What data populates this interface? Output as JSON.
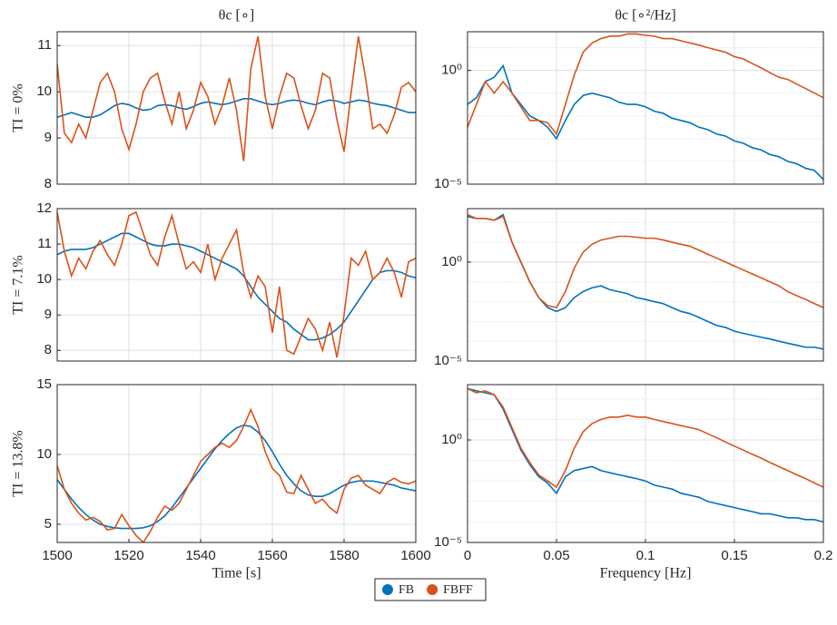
{
  "chart_data": [
    {
      "type": "line",
      "title": "θc [∘]",
      "ylabel": "TI = 0%",
      "x": [
        1500,
        1502,
        1504,
        1506,
        1508,
        1510,
        1512,
        1514,
        1516,
        1518,
        1520,
        1522,
        1524,
        1526,
        1528,
        1530,
        1532,
        1534,
        1536,
        1538,
        1540,
        1542,
        1544,
        1546,
        1548,
        1550,
        1552,
        1554,
        1556,
        1558,
        1560,
        1562,
        1564,
        1566,
        1568,
        1570,
        1572,
        1574,
        1576,
        1578,
        1580,
        1582,
        1584,
        1586,
        1588,
        1590,
        1592,
        1594,
        1596,
        1598,
        1600
      ],
      "series": [
        {
          "color": "#0072bd",
          "values": [
            9.45,
            9.5,
            9.55,
            9.5,
            9.45,
            9.45,
            9.5,
            9.6,
            9.7,
            9.75,
            9.72,
            9.65,
            9.6,
            9.62,
            9.7,
            9.72,
            9.7,
            9.65,
            9.62,
            9.68,
            9.75,
            9.78,
            9.75,
            9.72,
            9.75,
            9.8,
            9.85,
            9.85,
            9.8,
            9.75,
            9.72,
            9.75,
            9.8,
            9.82,
            9.8,
            9.75,
            9.72,
            9.78,
            9.82,
            9.8,
            9.75,
            9.78,
            9.82,
            9.8,
            9.75,
            9.72,
            9.7,
            9.65,
            9.6,
            9.55,
            9.55
          ]
        },
        {
          "color": "#d95319",
          "values": [
            10.6,
            9.1,
            8.9,
            9.3,
            9.0,
            9.6,
            10.2,
            10.4,
            10.0,
            9.2,
            8.75,
            9.3,
            10.0,
            10.3,
            10.4,
            9.8,
            9.3,
            10.0,
            9.2,
            9.6,
            10.2,
            9.9,
            9.3,
            9.7,
            10.3,
            9.6,
            8.5,
            10.5,
            11.2,
            9.9,
            9.2,
            9.9,
            10.4,
            10.3,
            9.7,
            9.2,
            9.6,
            10.4,
            10.3,
            9.4,
            8.7,
            10.0,
            11.2,
            10.3,
            9.2,
            9.3,
            9.1,
            9.5,
            10.1,
            10.2,
            10.0
          ]
        }
      ],
      "xlim": [
        1500,
        1600
      ],
      "ylim": [
        8,
        11.3
      ],
      "yticks": [
        8,
        9,
        10,
        11
      ],
      "grid": true
    },
    {
      "type": "line",
      "title": "θc [∘²/Hz]",
      "log_y": true,
      "x": [
        0,
        0.005,
        0.01,
        0.015,
        0.02,
        0.025,
        0.03,
        0.035,
        0.04,
        0.045,
        0.05,
        0.055,
        0.06,
        0.065,
        0.07,
        0.075,
        0.08,
        0.085,
        0.09,
        0.095,
        0.1,
        0.105,
        0.11,
        0.115,
        0.12,
        0.125,
        0.13,
        0.135,
        0.14,
        0.145,
        0.15,
        0.155,
        0.16,
        0.165,
        0.17,
        0.175,
        0.18,
        0.185,
        0.19,
        0.195,
        0.2
      ],
      "series": [
        {
          "color": "#0072bd",
          "values": [
            0.032,
            0.063,
            0.32,
            0.5,
            1.6,
            0.1,
            0.032,
            0.01,
            0.0063,
            0.0032,
            0.001,
            0.0063,
            0.032,
            0.079,
            0.1,
            0.079,
            0.063,
            0.04,
            0.032,
            0.032,
            0.025,
            0.016,
            0.013,
            0.0079,
            0.0063,
            0.005,
            0.0032,
            0.0025,
            0.0016,
            0.0013,
            0.00079,
            0.00063,
            0.0004,
            0.00032,
            0.0002,
            0.00016,
            0.0001,
            7.9e-05,
            5e-05,
            4e-05,
            1.6e-05
          ]
        },
        {
          "color": "#d95319",
          "values": [
            0.0032,
            0.032,
            0.32,
            0.1,
            0.32,
            0.1,
            0.025,
            0.0063,
            0.0063,
            0.005,
            0.0016,
            0.032,
            0.63,
            6.3,
            16,
            25,
            32,
            32,
            40,
            40,
            35,
            32,
            25,
            25,
            20,
            16,
            13,
            10,
            7.9,
            6.3,
            4,
            3.2,
            2,
            1.3,
            0.79,
            0.5,
            0.4,
            0.25,
            0.16,
            0.1,
            0.063
          ]
        }
      ],
      "xlim": [
        0,
        0.2
      ],
      "ylim": [
        1e-05,
        50
      ],
      "yticks": [
        {
          "value": 1e-05,
          "label": "10⁻⁵"
        },
        {
          "value": 1,
          "label": "10⁰"
        }
      ],
      "grid": true
    },
    {
      "type": "line",
      "ylabel": "TI = 7.1%",
      "x": [
        1500,
        1502,
        1504,
        1506,
        1508,
        1510,
        1512,
        1514,
        1516,
        1518,
        1520,
        1522,
        1524,
        1526,
        1528,
        1530,
        1532,
        1534,
        1536,
        1538,
        1540,
        1542,
        1544,
        1546,
        1548,
        1550,
        1552,
        1554,
        1556,
        1558,
        1560,
        1562,
        1564,
        1566,
        1568,
        1570,
        1572,
        1574,
        1576,
        1578,
        1580,
        1582,
        1584,
        1586,
        1588,
        1590,
        1592,
        1594,
        1596,
        1598,
        1600
      ],
      "series": [
        {
          "color": "#0072bd",
          "values": [
            10.7,
            10.8,
            10.85,
            10.85,
            10.85,
            10.9,
            11.0,
            11.1,
            11.2,
            11.3,
            11.3,
            11.2,
            11.1,
            11.0,
            10.95,
            10.95,
            11.0,
            11.0,
            10.95,
            10.9,
            10.8,
            10.7,
            10.6,
            10.5,
            10.4,
            10.3,
            10.1,
            9.8,
            9.5,
            9.3,
            9.1,
            8.9,
            8.8,
            8.6,
            8.45,
            8.3,
            8.3,
            8.35,
            8.45,
            8.6,
            8.8,
            9.1,
            9.4,
            9.7,
            10.0,
            10.2,
            10.25,
            10.25,
            10.2,
            10.1,
            10.05
          ]
        },
        {
          "color": "#d95319",
          "values": [
            11.9,
            10.8,
            10.1,
            10.6,
            10.3,
            10.8,
            11.1,
            10.7,
            10.4,
            11.0,
            11.8,
            11.9,
            11.3,
            10.7,
            10.4,
            11.2,
            11.8,
            11.0,
            10.3,
            10.5,
            10.2,
            11.0,
            10.0,
            10.6,
            11.0,
            11.4,
            10.2,
            9.5,
            10.1,
            9.8,
            8.5,
            9.8,
            8.0,
            7.9,
            8.4,
            8.9,
            8.6,
            8.0,
            8.8,
            7.8,
            9.0,
            10.6,
            10.4,
            10.8,
            10.0,
            10.2,
            10.6,
            10.2,
            9.5,
            10.5,
            10.6
          ]
        }
      ],
      "xlim": [
        1500,
        1600
      ],
      "ylim": [
        7.7,
        12
      ],
      "yticks": [
        8,
        9,
        10,
        11,
        12
      ],
      "grid": true
    },
    {
      "type": "line",
      "log_y": true,
      "x": [
        0,
        0.005,
        0.01,
        0.015,
        0.02,
        0.025,
        0.03,
        0.035,
        0.04,
        0.045,
        0.05,
        0.055,
        0.06,
        0.065,
        0.07,
        0.075,
        0.08,
        0.085,
        0.09,
        0.095,
        0.1,
        0.105,
        0.11,
        0.115,
        0.12,
        0.125,
        0.13,
        0.135,
        0.14,
        0.145,
        0.15,
        0.155,
        0.16,
        0.165,
        0.17,
        0.175,
        0.18,
        0.185,
        0.19,
        0.195,
        0.2
      ],
      "series": [
        {
          "color": "#0072bd",
          "values": [
            200,
            160,
            160,
            130,
            250,
            10,
            1,
            0.1,
            0.016,
            0.005,
            0.0032,
            0.005,
            0.016,
            0.032,
            0.05,
            0.063,
            0.04,
            0.032,
            0.025,
            0.016,
            0.013,
            0.01,
            0.0079,
            0.005,
            0.0032,
            0.0025,
            0.0016,
            0.001,
            0.00063,
            0.0005,
            0.00032,
            0.00025,
            0.0002,
            0.00016,
            0.00013,
            0.0001,
            7.9e-05,
            6.3e-05,
            5e-05,
            5e-05,
            4e-05
          ]
        },
        {
          "color": "#d95319",
          "values": [
            250,
            160,
            160,
            130,
            200,
            10,
            1,
            0.1,
            0.016,
            0.0063,
            0.005,
            0.032,
            0.5,
            3.2,
            7.9,
            13,
            16,
            20,
            20,
            18,
            16,
            16,
            13,
            10,
            7.9,
            6.3,
            4,
            2.5,
            1.6,
            1,
            0.63,
            0.4,
            0.25,
            0.16,
            0.1,
            0.063,
            0.032,
            0.02,
            0.013,
            0.0079,
            0.005
          ]
        }
      ],
      "xlim": [
        0,
        0.2
      ],
      "ylim": [
        1e-05,
        500
      ],
      "yticks": [
        {
          "value": 1e-05,
          "label": "10⁻⁵"
        },
        {
          "value": 1,
          "label": "10⁰"
        }
      ],
      "grid": true
    },
    {
      "type": "line",
      "ylabel": "TI = 13.8%",
      "xlabel": "Time [s]",
      "legend": "bottom",
      "x": [
        1500,
        1502,
        1504,
        1506,
        1508,
        1510,
        1512,
        1514,
        1516,
        1518,
        1520,
        1522,
        1524,
        1526,
        1528,
        1530,
        1532,
        1534,
        1536,
        1538,
        1540,
        1542,
        1544,
        1546,
        1548,
        1550,
        1552,
        1554,
        1556,
        1558,
        1560,
        1562,
        1564,
        1566,
        1568,
        1570,
        1572,
        1574,
        1576,
        1578,
        1580,
        1582,
        1584,
        1586,
        1588,
        1590,
        1592,
        1594,
        1596,
        1598,
        1600
      ],
      "series": [
        {
          "name": "FB",
          "color": "#0072bd",
          "values": [
            8.2,
            7.5,
            6.8,
            6.2,
            5.7,
            5.3,
            5.0,
            4.85,
            4.75,
            4.7,
            4.7,
            4.7,
            4.75,
            4.9,
            5.2,
            5.6,
            6.2,
            6.9,
            7.6,
            8.3,
            9.0,
            9.7,
            10.4,
            11.0,
            11.5,
            11.9,
            12.1,
            12.0,
            11.6,
            11.0,
            10.2,
            9.3,
            8.5,
            7.9,
            7.4,
            7.1,
            7.0,
            7.0,
            7.2,
            7.5,
            7.8,
            8.0,
            8.1,
            8.1,
            8.1,
            8.0,
            7.9,
            7.8,
            7.6,
            7.5,
            7.4
          ]
        },
        {
          "name": "FBFF",
          "color": "#d95319",
          "values": [
            9.2,
            7.5,
            6.5,
            5.8,
            5.3,
            5.5,
            5.2,
            4.6,
            4.7,
            5.7,
            4.9,
            4.2,
            3.7,
            4.5,
            5.5,
            6.3,
            6.0,
            6.5,
            7.5,
            8.5,
            9.5,
            10.0,
            10.5,
            10.8,
            10.5,
            11.0,
            12.0,
            13.2,
            12.0,
            10.2,
            9.0,
            8.5,
            7.3,
            7.2,
            8.5,
            7.5,
            6.5,
            6.8,
            6.2,
            5.8,
            7.5,
            8.3,
            8.5,
            7.8,
            7.5,
            7.2,
            8.0,
            8.3,
            8.0,
            7.9,
            8.1
          ]
        }
      ],
      "xlim": [
        1500,
        1600
      ],
      "ylim": [
        3.7,
        15
      ],
      "xticks": [
        1500,
        1520,
        1540,
        1560,
        1580,
        1600
      ],
      "yticks": [
        5,
        10,
        15
      ],
      "grid": true
    },
    {
      "type": "line",
      "xlabel": "Frequency [Hz]",
      "log_y": true,
      "x": [
        0,
        0.005,
        0.01,
        0.015,
        0.02,
        0.025,
        0.03,
        0.035,
        0.04,
        0.045,
        0.05,
        0.055,
        0.06,
        0.065,
        0.07,
        0.075,
        0.08,
        0.085,
        0.09,
        0.095,
        0.1,
        0.105,
        0.11,
        0.115,
        0.12,
        0.125,
        0.13,
        0.135,
        0.14,
        0.145,
        0.15,
        0.155,
        0.16,
        0.165,
        0.17,
        0.175,
        0.18,
        0.185,
        0.19,
        0.195,
        0.2
      ],
      "series": [
        {
          "color": "#0072bd",
          "values": [
            320,
            250,
            200,
            160,
            32,
            3.2,
            0.32,
            0.063,
            0.016,
            0.0079,
            0.0025,
            0.016,
            0.032,
            0.04,
            0.05,
            0.032,
            0.025,
            0.02,
            0.016,
            0.013,
            0.01,
            0.0063,
            0.005,
            0.004,
            0.0025,
            0.002,
            0.0016,
            0.001,
            0.00079,
            0.00063,
            0.0005,
            0.0004,
            0.00032,
            0.00025,
            0.00025,
            0.0002,
            0.00016,
            0.00016,
            0.00013,
            0.00013,
            0.0001
          ]
        },
        {
          "color": "#d95319",
          "values": [
            320,
            200,
            250,
            160,
            40,
            4,
            0.4,
            0.079,
            0.02,
            0.01,
            0.005,
            0.032,
            0.4,
            2.5,
            6.3,
            10,
            13,
            13,
            16,
            13,
            13,
            10,
            7.9,
            6.3,
            5,
            4,
            3.2,
            2,
            1.3,
            0.79,
            0.5,
            0.32,
            0.2,
            0.13,
            0.079,
            0.05,
            0.032,
            0.02,
            0.013,
            0.0079,
            0.005
          ]
        }
      ],
      "xlim": [
        0,
        0.2
      ],
      "ylim": [
        1e-05,
        500
      ],
      "xticks": [
        0,
        0.05,
        0.1,
        0.15,
        0.2
      ],
      "yticks": [
        {
          "value": 1e-05,
          "label": "10⁻⁵"
        },
        {
          "value": 1,
          "label": "10⁰"
        }
      ],
      "grid": true
    }
  ]
}
